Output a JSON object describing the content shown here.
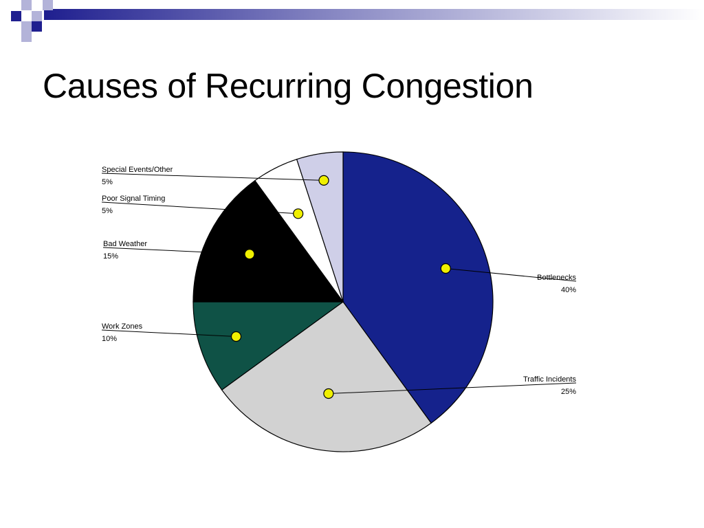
{
  "slide": {
    "title": "Causes of Recurring Congestion"
  },
  "theme": {
    "deco_dark": "#1f1f8f",
    "deco_light": "#b3b3d9"
  },
  "chart_data": {
    "type": "pie",
    "title": "",
    "slices": [
      {
        "label": "Bottlenecks",
        "value": 40,
        "value_label": "40%",
        "color": "#15228c"
      },
      {
        "label": "Traffic Incidents",
        "value": 25,
        "value_label": "25%",
        "color": "#d2d2d2"
      },
      {
        "label": "Work Zones",
        "value": 10,
        "value_label": "10%",
        "color": "#0f5246"
      },
      {
        "label": "Bad Weather",
        "value": 15,
        "value_label": "15%",
        "color": "#000000"
      },
      {
        "label": "Poor Signal Timing",
        "value": 5,
        "value_label": "5%",
        "color": "#ffffff"
      },
      {
        "label": "Special Events/Other",
        "value": 5,
        "value_label": "5%",
        "color": "#cfcfe8"
      }
    ],
    "marker_color": "#f0f000"
  }
}
